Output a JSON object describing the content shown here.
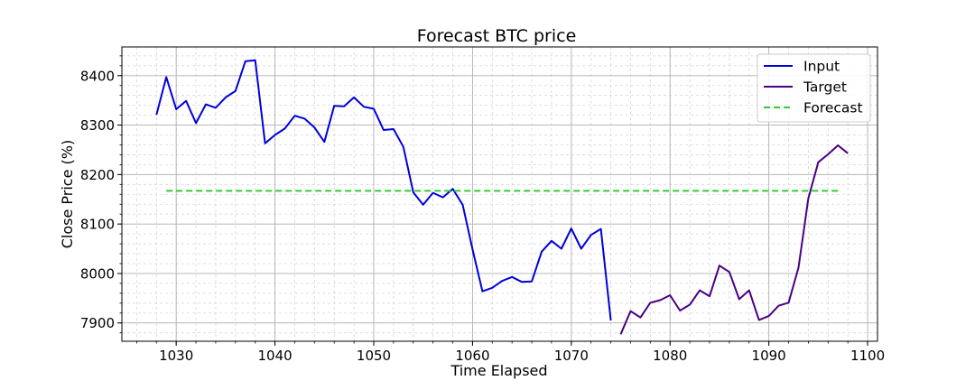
{
  "chart_data": {
    "type": "line",
    "title": "Forecast BTC price",
    "xlabel": "Time Elapsed",
    "ylabel": "Close Price (%)",
    "xlim": [
      1024.5,
      1101
    ],
    "ylim": [
      7863,
      8458
    ],
    "xticks": [
      1030,
      1040,
      1050,
      1060,
      1070,
      1080,
      1090,
      1100
    ],
    "yticks": [
      7900,
      8000,
      8100,
      8200,
      8300,
      8400
    ],
    "grid": true,
    "legend_position": "top-right",
    "series": [
      {
        "name": "Input",
        "color": "#0000dd",
        "style": "solid",
        "x": [
          1028,
          1029,
          1030,
          1031,
          1032,
          1033,
          1034,
          1035,
          1036,
          1037,
          1038,
          1039,
          1040,
          1041,
          1042,
          1043,
          1044,
          1045,
          1046,
          1047,
          1048,
          1049,
          1050,
          1051,
          1052,
          1053,
          1054,
          1055,
          1056,
          1057,
          1058,
          1059,
          1060,
          1061,
          1062,
          1063,
          1064,
          1065,
          1066,
          1067,
          1068,
          1069,
          1070,
          1071,
          1072,
          1073,
          1074
        ],
        "y": [
          8321,
          8397,
          8332,
          8349,
          8304,
          8342,
          8335,
          8356,
          8369,
          8429,
          8431,
          8263,
          8280,
          8293,
          8319,
          8313,
          8295,
          8266,
          8339,
          8338,
          8356,
          8337,
          8333,
          8290,
          8292,
          8256,
          8164,
          8139,
          8163,
          8154,
          8171,
          8139,
          8049,
          7964,
          7971,
          7985,
          7993,
          7983,
          7984,
          8044,
          8066,
          8050,
          8091,
          8050,
          8078,
          8090,
          7905
        ]
      },
      {
        "name": "Target",
        "color": "#4b0082",
        "style": "solid",
        "x": [
          1075,
          1076,
          1077,
          1078,
          1079,
          1080,
          1081,
          1082,
          1083,
          1084,
          1085,
          1086,
          1087,
          1088,
          1089,
          1090,
          1091,
          1092,
          1093,
          1094,
          1095,
          1096,
          1097,
          1098
        ],
        "y": [
          7877,
          7924,
          7911,
          7941,
          7946,
          7956,
          7925,
          7937,
          7966,
          7954,
          8016,
          8003,
          7948,
          7966,
          7906,
          7914,
          7935,
          7941,
          8012,
          8152,
          8225,
          8241,
          8259,
          8243
        ]
      },
      {
        "name": "Forecast",
        "color": "#33cc33",
        "style": "dashed",
        "x": [
          1029,
          1097
        ],
        "y": [
          8167,
          8167
        ]
      }
    ]
  }
}
